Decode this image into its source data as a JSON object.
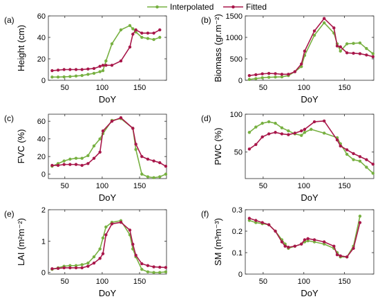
{
  "legend": {
    "items": [
      {
        "label": "Interpolated",
        "color": "#77b041"
      },
      {
        "label": "Fitted",
        "color": "#a8174a"
      }
    ],
    "placement": "top"
  },
  "chart_data": [
    {
      "type": "line",
      "panel": "(a)",
      "xlabel": "DoY",
      "ylabel": "Height (cm)",
      "xlim": [
        28,
        186
      ],
      "ylim": [
        0,
        60
      ],
      "xticks": [
        50,
        100,
        150
      ],
      "yticks": [
        0,
        20,
        40,
        60
      ],
      "grid": false,
      "series": [
        {
          "name": "Interpolated",
          "color": "#77b041",
          "x": [
            33,
            41,
            49,
            57,
            65,
            73,
            81,
            89,
            97,
            101,
            105,
            113,
            125,
            137,
            141,
            145,
            153,
            161,
            169,
            177
          ],
          "y": [
            3,
            3,
            3.2,
            3.5,
            4,
            4.5,
            5.5,
            6.5,
            8,
            9,
            18,
            34,
            47,
            51,
            48,
            45,
            40,
            39,
            38,
            40
          ]
        },
        {
          "name": "Fitted",
          "color": "#a8174a",
          "x": [
            33,
            41,
            49,
            57,
            65,
            73,
            81,
            89,
            97,
            101,
            105,
            113,
            125,
            137,
            141,
            145,
            153,
            161,
            169,
            177
          ],
          "y": [
            9,
            9.5,
            10,
            10,
            10,
            10,
            10.5,
            11,
            13,
            14,
            14,
            14,
            18,
            31,
            43,
            47,
            44,
            44,
            44,
            47
          ]
        }
      ]
    },
    {
      "type": "line",
      "panel": "(b)",
      "xlabel": "DoY",
      "ylabel": "Biomass (gr.m⁻²)",
      "xlim": [
        28,
        186
      ],
      "ylim": [
        0,
        1500
      ],
      "xticks": [
        50,
        100,
        150
      ],
      "yticks": [
        0,
        500,
        1000,
        1500
      ],
      "grid": false,
      "series": [
        {
          "name": "Interpolated",
          "color": "#77b041",
          "x": [
            33,
            41,
            49,
            57,
            65,
            73,
            81,
            89,
            97,
            101,
            113,
            125,
            137,
            141,
            145,
            153,
            161,
            169,
            177,
            185
          ],
          "y": [
            20,
            40,
            60,
            70,
            75,
            80,
            110,
            200,
            320,
            580,
            1050,
            1340,
            1100,
            850,
            680,
            850,
            860,
            870,
            740,
            620
          ]
        },
        {
          "name": "Fitted",
          "color": "#a8174a",
          "x": [
            33,
            41,
            49,
            57,
            65,
            73,
            81,
            89,
            97,
            101,
            113,
            125,
            137,
            141,
            145,
            153,
            161,
            169,
            177,
            185
          ],
          "y": [
            110,
            130,
            150,
            160,
            155,
            140,
            140,
            200,
            380,
            680,
            1150,
            1440,
            1220,
            800,
            780,
            640,
            630,
            620,
            590,
            550
          ]
        }
      ]
    },
    {
      "type": "line",
      "panel": "(c)",
      "xlabel": "DoY",
      "ylabel": "FVC (%)",
      "xlim": [
        28,
        186
      ],
      "ylim": [
        -5,
        68
      ],
      "xticks": [
        50,
        100,
        150
      ],
      "yticks": [
        0,
        20,
        40,
        60
      ],
      "grid": false,
      "series": [
        {
          "name": "Interpolated",
          "color": "#77b041",
          "x": [
            33,
            41,
            49,
            57,
            65,
            73,
            81,
            89,
            97,
            101,
            113,
            125,
            141,
            145,
            153,
            161,
            169,
            177,
            185
          ],
          "y": [
            9,
            12,
            15,
            17,
            18,
            18,
            21,
            32,
            40,
            46,
            61,
            63,
            52,
            28,
            0,
            -3,
            -4,
            -3,
            0
          ]
        },
        {
          "name": "Fitted",
          "color": "#a8174a",
          "x": [
            33,
            41,
            49,
            57,
            65,
            73,
            81,
            89,
            97,
            101,
            113,
            125,
            141,
            145,
            153,
            161,
            169,
            177,
            185
          ],
          "y": [
            10,
            10,
            11,
            11,
            11,
            10,
            12,
            18,
            25,
            49,
            60,
            64,
            52,
            34,
            20,
            17,
            15,
            13,
            9
          ]
        }
      ]
    },
    {
      "type": "line",
      "panel": "(d)",
      "xlabel": "DoY",
      "ylabel": "PWC (%)",
      "xlim": [
        28,
        186
      ],
      "ylim": [
        15,
        100
      ],
      "xticks": [
        50,
        100,
        150
      ],
      "yticks": [
        50,
        100
      ],
      "grid": false,
      "series": [
        {
          "name": "Interpolated",
          "color": "#77b041",
          "x": [
            33,
            41,
            49,
            57,
            65,
            73,
            81,
            89,
            97,
            101,
            109,
            125,
            141,
            145,
            153,
            161,
            169,
            177,
            185
          ],
          "y": [
            76,
            83,
            88,
            90,
            88,
            82,
            78,
            74,
            72,
            76,
            80,
            75,
            69,
            61,
            47,
            40,
            38,
            30,
            22
          ]
        },
        {
          "name": "Fitted",
          "color": "#a8174a",
          "x": [
            33,
            41,
            49,
            57,
            65,
            73,
            81,
            89,
            97,
            101,
            113,
            125,
            141,
            145,
            153,
            161,
            169,
            177,
            185
          ],
          "y": [
            54,
            60,
            70,
            74,
            76,
            74,
            73,
            75,
            78,
            80,
            90,
            91,
            66,
            58,
            53,
            48,
            44,
            40,
            34
          ]
        }
      ]
    },
    {
      "type": "line",
      "panel": "(e)",
      "xlabel": "DoY",
      "ylabel": "LAI (m²m⁻²)",
      "xlim": [
        28,
        186
      ],
      "ylim": [
        -0.05,
        2
      ],
      "xticks": [
        50,
        100,
        150
      ],
      "yticks": [
        0,
        1,
        2
      ],
      "grid": false,
      "series": [
        {
          "name": "Interpolated",
          "color": "#77b041",
          "x": [
            33,
            41,
            49,
            57,
            65,
            73,
            81,
            89,
            97,
            101,
            105,
            113,
            125,
            137,
            141,
            145,
            153,
            161,
            169,
            177,
            185
          ],
          "y": [
            0.1,
            0.15,
            0.2,
            0.22,
            0.22,
            0.25,
            0.3,
            0.5,
            0.75,
            1.1,
            1.45,
            1.6,
            1.65,
            1.2,
            0.75,
            0.5,
            0.1,
            0.02,
            0,
            0,
            0.02
          ]
        },
        {
          "name": "Fitted",
          "color": "#a8174a",
          "x": [
            33,
            41,
            49,
            57,
            65,
            73,
            81,
            89,
            97,
            101,
            105,
            113,
            125,
            137,
            141,
            145,
            153,
            161,
            169,
            177,
            185
          ],
          "y": [
            0.12,
            0.13,
            0.15,
            0.15,
            0.15,
            0.15,
            0.2,
            0.3,
            0.45,
            0.6,
            1.2,
            1.55,
            1.6,
            1.35,
            0.9,
            0.55,
            0.28,
            0.22,
            0.18,
            0.17,
            0.16
          ]
        }
      ]
    },
    {
      "type": "line",
      "panel": "(f)",
      "xlabel": "DoY",
      "ylabel": "SM (m³m⁻³)",
      "xlim": [
        28,
        186
      ],
      "ylim": [
        0,
        0.3
      ],
      "xticks": [
        50,
        100,
        150
      ],
      "yticks": [
        0,
        0.1,
        0.2,
        0.3
      ],
      "grid": false,
      "series": [
        {
          "name": "Interpolated",
          "color": "#77b041",
          "x": [
            33,
            41,
            49,
            57,
            65,
            73,
            77,
            81,
            89,
            97,
            101,
            105,
            113,
            125,
            137,
            141,
            145,
            153,
            161,
            169
          ],
          "y": [
            0.25,
            0.24,
            0.235,
            0.23,
            0.2,
            0.16,
            0.14,
            0.12,
            0.13,
            0.14,
            0.15,
            0.155,
            0.15,
            0.14,
            0.12,
            0.1,
            0.08,
            0.08,
            0.13,
            0.27
          ]
        },
        {
          "name": "Fitted",
          "color": "#a8174a",
          "x": [
            33,
            41,
            49,
            57,
            65,
            73,
            77,
            81,
            89,
            97,
            101,
            105,
            113,
            125,
            137,
            141,
            145,
            153,
            161,
            169
          ],
          "y": [
            0.26,
            0.25,
            0.24,
            0.23,
            0.2,
            0.15,
            0.13,
            0.125,
            0.13,
            0.14,
            0.16,
            0.165,
            0.16,
            0.15,
            0.13,
            0.09,
            0.085,
            0.08,
            0.12,
            0.24
          ]
        }
      ]
    }
  ]
}
